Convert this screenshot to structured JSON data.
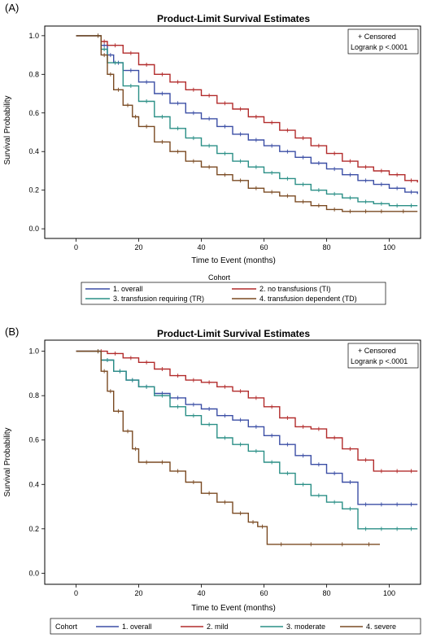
{
  "chart_data": [
    {
      "panel_label": "(A)",
      "type": "line",
      "title": "Product-Limit Survival Estimates",
      "xlabel": "Time to Event (months)",
      "ylabel": "Survival Probability",
      "xlim": [
        -10,
        110
      ],
      "ylim": [
        -0.05,
        1.05
      ],
      "xticks": [
        0,
        20,
        40,
        60,
        80,
        100
      ],
      "yticks": [
        0.0,
        0.2,
        0.4,
        0.6,
        0.8,
        1.0
      ],
      "inset_legend": [
        "+ Censored",
        "Logrank p <.0001"
      ],
      "legend_title": "Cohort",
      "legend_position": "below",
      "series": [
        {
          "name": "1. overall",
          "color": "#3b4ea5",
          "x": [
            0,
            6,
            8,
            10,
            12,
            15,
            20,
            25,
            30,
            35,
            40,
            45,
            50,
            55,
            60,
            65,
            70,
            75,
            80,
            85,
            90,
            95,
            100,
            105,
            109
          ],
          "y": [
            1.0,
            1.0,
            0.95,
            0.9,
            0.86,
            0.82,
            0.76,
            0.7,
            0.65,
            0.6,
            0.57,
            0.53,
            0.49,
            0.46,
            0.43,
            0.4,
            0.37,
            0.34,
            0.31,
            0.28,
            0.25,
            0.23,
            0.21,
            0.19,
            0.18
          ]
        },
        {
          "name": "2. no transfusions (TI)",
          "color": "#b22b2b",
          "x": [
            0,
            6,
            8,
            10,
            15,
            20,
            25,
            30,
            35,
            40,
            45,
            50,
            55,
            60,
            65,
            70,
            75,
            80,
            85,
            90,
            95,
            100,
            105,
            109
          ],
          "y": [
            1.0,
            1.0,
            0.97,
            0.95,
            0.91,
            0.85,
            0.8,
            0.76,
            0.72,
            0.69,
            0.65,
            0.62,
            0.58,
            0.55,
            0.51,
            0.47,
            0.43,
            0.39,
            0.35,
            0.32,
            0.3,
            0.28,
            0.25,
            0.24
          ]
        },
        {
          "name": "3. transfusion requiring (TR)",
          "color": "#2a8f86",
          "x": [
            0,
            6,
            8,
            10,
            15,
            20,
            25,
            30,
            35,
            40,
            45,
            50,
            55,
            60,
            65,
            70,
            75,
            80,
            85,
            90,
            95,
            100,
            105,
            109
          ],
          "y": [
            1.0,
            1.0,
            0.93,
            0.86,
            0.74,
            0.66,
            0.58,
            0.52,
            0.47,
            0.43,
            0.39,
            0.35,
            0.32,
            0.29,
            0.26,
            0.23,
            0.2,
            0.18,
            0.16,
            0.14,
            0.13,
            0.12,
            0.12,
            0.12
          ]
        },
        {
          "name": "4. transfusion dependent (TD)",
          "color": "#7a4a22",
          "x": [
            0,
            6,
            8,
            10,
            12,
            15,
            18,
            20,
            25,
            30,
            35,
            40,
            45,
            50,
            55,
            60,
            65,
            70,
            75,
            80,
            85,
            90,
            95,
            100,
            109
          ],
          "y": [
            1.0,
            1.0,
            0.9,
            0.8,
            0.72,
            0.64,
            0.58,
            0.53,
            0.45,
            0.4,
            0.35,
            0.32,
            0.28,
            0.25,
            0.21,
            0.19,
            0.17,
            0.14,
            0.12,
            0.1,
            0.09,
            0.09,
            0.09,
            0.09,
            0.09
          ]
        }
      ]
    },
    {
      "panel_label": "(B)",
      "type": "line",
      "title": "Product-Limit Survival Estimates",
      "xlabel": "Time to Event (months)",
      "ylabel": "Survival Probability",
      "xlim": [
        -10,
        110
      ],
      "ylim": [
        -0.05,
        1.05
      ],
      "xticks": [
        0,
        20,
        40,
        60,
        80,
        100
      ],
      "yticks": [
        0.0,
        0.2,
        0.4,
        0.6,
        0.8,
        1.0
      ],
      "inset_legend": [
        "+ Censored",
        "Logrank p <.0001"
      ],
      "legend_title": "Cohort",
      "legend_position": "below",
      "series": [
        {
          "name": "1. overall",
          "color": "#3b4ea5",
          "x": [
            0,
            6,
            8,
            12,
            16,
            20,
            25,
            30,
            35,
            40,
            45,
            50,
            55,
            60,
            65,
            70,
            75,
            80,
            85,
            90,
            95,
            100,
            105,
            109
          ],
          "y": [
            1.0,
            1.0,
            0.96,
            0.91,
            0.87,
            0.84,
            0.81,
            0.79,
            0.76,
            0.74,
            0.71,
            0.69,
            0.66,
            0.62,
            0.58,
            0.53,
            0.49,
            0.45,
            0.41,
            0.31,
            0.31,
            0.31,
            0.31,
            0.31
          ]
        },
        {
          "name": "2. mild",
          "color": "#b22b2b",
          "x": [
            0,
            6,
            10,
            15,
            20,
            25,
            30,
            35,
            40,
            45,
            50,
            55,
            60,
            65,
            70,
            75,
            80,
            85,
            90,
            95,
            100,
            105,
            109
          ],
          "y": [
            1.0,
            1.0,
            0.99,
            0.97,
            0.95,
            0.92,
            0.89,
            0.87,
            0.86,
            0.84,
            0.82,
            0.79,
            0.75,
            0.7,
            0.66,
            0.65,
            0.61,
            0.56,
            0.51,
            0.46,
            0.46,
            0.46,
            0.46
          ]
        },
        {
          "name": "3. moderate",
          "color": "#2a8f86",
          "x": [
            0,
            6,
            8,
            12,
            16,
            20,
            25,
            30,
            35,
            40,
            45,
            50,
            55,
            60,
            65,
            70,
            75,
            80,
            85,
            90,
            95,
            100,
            105,
            109
          ],
          "y": [
            1.0,
            1.0,
            0.96,
            0.91,
            0.87,
            0.84,
            0.8,
            0.75,
            0.71,
            0.67,
            0.61,
            0.58,
            0.55,
            0.5,
            0.45,
            0.4,
            0.35,
            0.32,
            0.29,
            0.2,
            0.2,
            0.2,
            0.2,
            0.2
          ]
        },
        {
          "name": "4. severe",
          "color": "#7a4a22",
          "x": [
            0,
            6,
            8,
            10,
            12,
            15,
            18,
            20,
            25,
            30,
            35,
            40,
            45,
            50,
            55,
            58,
            61,
            70,
            80,
            90,
            97
          ],
          "y": [
            1.0,
            1.0,
            0.91,
            0.82,
            0.73,
            0.64,
            0.56,
            0.5,
            0.5,
            0.46,
            0.41,
            0.36,
            0.32,
            0.27,
            0.23,
            0.21,
            0.13,
            0.13,
            0.13,
            0.13,
            0.13
          ]
        }
      ]
    }
  ]
}
